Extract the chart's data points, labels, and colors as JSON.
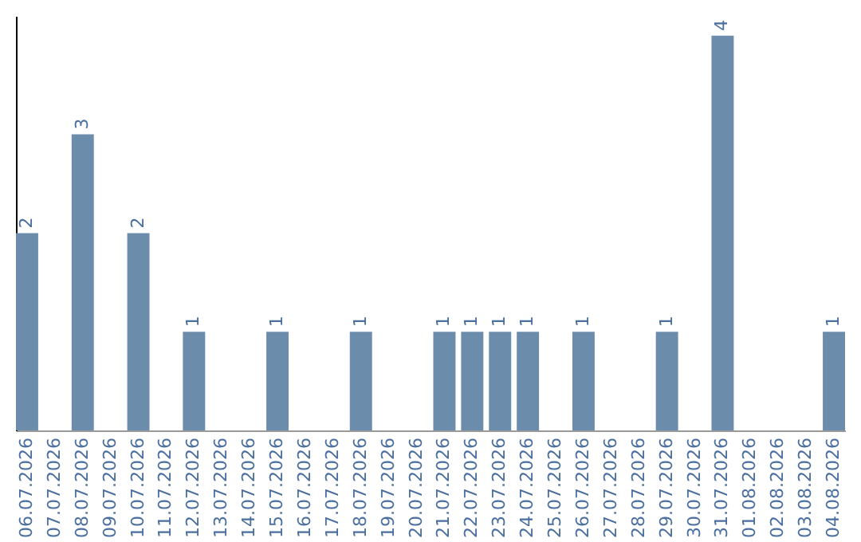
{
  "chart_data": {
    "type": "bar",
    "categories": [
      "06.07.2026",
      "07.07.2026",
      "08.07.2026",
      "09.07.2026",
      "10.07.2026",
      "11.07.2026",
      "12.07.2026",
      "13.07.2026",
      "14.07.2026",
      "15.07.2026",
      "16.07.2026",
      "17.07.2026",
      "18.07.2026",
      "19.07.2026",
      "20.07.2026",
      "21.07.2026",
      "22.07.2026",
      "23.07.2026",
      "24.07.2026",
      "25.07.2026",
      "26.07.2026",
      "27.07.2026",
      "28.07.2026",
      "29.07.2026",
      "30.07.2026",
      "31.07.2026",
      "01.08.2026",
      "02.08.2026",
      "03.08.2026",
      "04.08.2026"
    ],
    "values": [
      2,
      null,
      3,
      null,
      2,
      null,
      1,
      null,
      null,
      1,
      null,
      null,
      1,
      null,
      null,
      1,
      1,
      1,
      1,
      null,
      1,
      null,
      null,
      1,
      null,
      4,
      null,
      null,
      null,
      1
    ],
    "color": "#6c8cab",
    "ylim": [
      0,
      4.2
    ],
    "data_labels": true
  }
}
